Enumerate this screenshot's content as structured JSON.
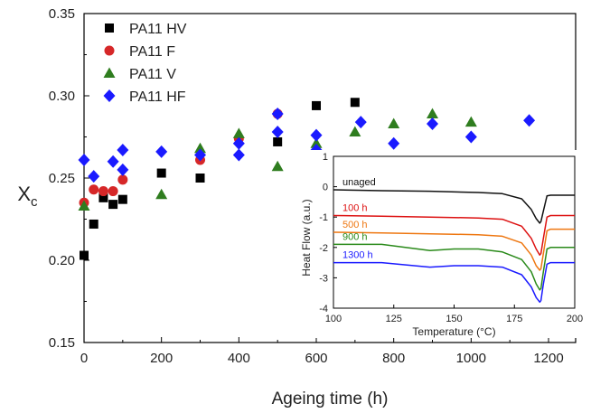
{
  "chart_data": [
    {
      "type": "scatter",
      "title": "",
      "xlabel": "Ageing time (h)",
      "ylabel": "Xc",
      "xlim": [
        0,
        1270
      ],
      "ylim": [
        0.15,
        0.35
      ],
      "xticks": [
        "0",
        "200",
        "400",
        "600",
        "800",
        "1000",
        "1200"
      ],
      "yticks": [
        "0.15",
        "0.20",
        "0.25",
        "0.30",
        "0.35"
      ],
      "grid": false,
      "legend_position": "top-left",
      "series": [
        {
          "name": "PA11 HV",
          "marker": "square",
          "color": "#000000",
          "points": [
            [
              0,
              0.203
            ],
            [
              25,
              0.222
            ],
            [
              50,
              0.238
            ],
            [
              75,
              0.234
            ],
            [
              100,
              0.237
            ],
            [
              200,
              0.253
            ],
            [
              300,
              0.25
            ],
            [
              500,
              0.272
            ],
            [
              600,
              0.294
            ],
            [
              700,
              0.296
            ]
          ]
        },
        {
          "name": "PA11 F",
          "marker": "circle",
          "color": "#d62728",
          "points": [
            [
              0,
              0.235
            ],
            [
              25,
              0.243
            ],
            [
              50,
              0.242
            ],
            [
              75,
              0.242
            ],
            [
              100,
              0.249
            ],
            [
              300,
              0.261
            ],
            [
              400,
              0.274
            ],
            [
              500,
              0.289
            ]
          ]
        },
        {
          "name": "PA11 V",
          "marker": "triangle",
          "color": "#2f7d1f",
          "points": [
            [
              0,
              0.233
            ],
            [
              200,
              0.24
            ],
            [
              300,
              0.268
            ],
            [
              400,
              0.277
            ],
            [
              500,
              0.257
            ],
            [
              600,
              0.271
            ],
            [
              700,
              0.278
            ],
            [
              800,
              0.283
            ],
            [
              900,
              0.289
            ],
            [
              1000,
              0.284
            ]
          ]
        },
        {
          "name": "PA11 HF",
          "marker": "diamond",
          "color": "#1a1aff",
          "points": [
            [
              0,
              0.261
            ],
            [
              25,
              0.251
            ],
            [
              75,
              0.26
            ],
            [
              100,
              0.267
            ],
            [
              100,
              0.255
            ],
            [
              200,
              0.266
            ],
            [
              300,
              0.264
            ],
            [
              400,
              0.271
            ],
            [
              400,
              0.264
            ],
            [
              500,
              0.289
            ],
            [
              500,
              0.278
            ],
            [
              600,
              0.276
            ],
            [
              600,
              0.267
            ],
            [
              715,
              0.284
            ],
            [
              800,
              0.271
            ],
            [
              900,
              0.283
            ],
            [
              1000,
              0.275
            ],
            [
              1150,
              0.285
            ]
          ]
        }
      ]
    },
    {
      "type": "line",
      "title": "",
      "xlabel": "Temperature (°C)",
      "ylabel": "Heat Flow (a.u.)",
      "xlim": [
        100,
        200
      ],
      "ylim": [
        -4,
        1
      ],
      "xticks": [
        "100",
        "125",
        "150",
        "175",
        "200"
      ],
      "yticks": [
        "1",
        "0",
        "-1",
        "-2",
        "-3",
        "-4"
      ],
      "legend_position": "inline-left",
      "series": [
        {
          "name": "unaged",
          "color": "#111111",
          "x": [
            100,
            120,
            140,
            160,
            170,
            178,
            182,
            184,
            185.5,
            186,
            187,
            188.5,
            190,
            195,
            200
          ],
          "y": [
            -0.1,
            -0.13,
            -0.15,
            -0.19,
            -0.23,
            -0.4,
            -0.75,
            -1.05,
            -1.2,
            -1.15,
            -0.8,
            -0.3,
            -0.28,
            -0.28,
            -0.28
          ]
        },
        {
          "name": "100 h",
          "color": "#dd1111",
          "x": [
            100,
            120,
            140,
            160,
            170,
            178,
            182,
            184,
            185.5,
            186,
            187,
            188.5,
            190,
            195,
            200
          ],
          "y": [
            -0.95,
            -0.97,
            -1.0,
            -1.03,
            -1.07,
            -1.3,
            -1.7,
            -2.05,
            -2.25,
            -2.2,
            -1.7,
            -1.0,
            -0.95,
            -0.95,
            -0.95
          ]
        },
        {
          "name": "500 h",
          "color": "#ee7711",
          "x": [
            100,
            120,
            140,
            160,
            170,
            178,
            182,
            184,
            185.5,
            186,
            187,
            188.5,
            190,
            195,
            200
          ],
          "y": [
            -1.5,
            -1.52,
            -1.55,
            -1.58,
            -1.63,
            -1.85,
            -2.25,
            -2.6,
            -2.75,
            -2.7,
            -2.2,
            -1.45,
            -1.4,
            -1.4,
            -1.4
          ]
        },
        {
          "name": "900 h",
          "color": "#2a8a1a",
          "x": [
            100,
            120,
            140,
            150,
            160,
            170,
            178,
            182,
            184,
            185.5,
            186,
            187,
            188.5,
            190,
            195,
            200
          ],
          "y": [
            -1.9,
            -1.9,
            -2.1,
            -2.05,
            -2.05,
            -2.15,
            -2.4,
            -2.8,
            -3.2,
            -3.4,
            -3.35,
            -2.8,
            -2.05,
            -2.0,
            -2.0,
            -2.0
          ]
        },
        {
          "name": "1300 h",
          "color": "#1a1aff",
          "x": [
            100,
            120,
            140,
            150,
            160,
            170,
            178,
            182,
            184,
            185.5,
            186,
            187,
            188.5,
            190,
            195,
            200
          ],
          "y": [
            -2.5,
            -2.5,
            -2.65,
            -2.6,
            -2.6,
            -2.65,
            -2.9,
            -3.3,
            -3.65,
            -3.8,
            -3.75,
            -3.2,
            -2.55,
            -2.5,
            -2.5,
            -2.5
          ]
        }
      ]
    }
  ]
}
